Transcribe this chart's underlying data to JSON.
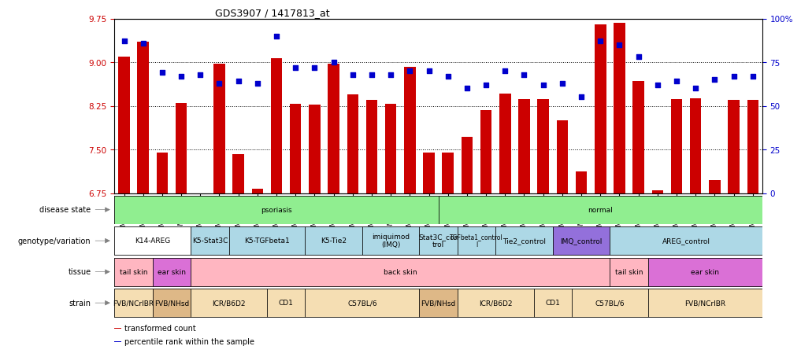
{
  "title": "GDS3907 / 1417813_at",
  "samples": [
    "GSM684694",
    "GSM684695",
    "GSM684696",
    "GSM684688",
    "GSM684689",
    "GSM684690",
    "GSM684700",
    "GSM684701",
    "GSM684704",
    "GSM684705",
    "GSM684706",
    "GSM684676",
    "GSM684677",
    "GSM684678",
    "GSM684682",
    "GSM684683",
    "GSM684684",
    "GSM684702",
    "GSM684703",
    "GSM684707",
    "GSM684708",
    "GSM684709",
    "GSM684679",
    "GSM684680",
    "GSM684681",
    "GSM684685",
    "GSM684686",
    "GSM684687",
    "GSM684697",
    "GSM684698",
    "GSM684699",
    "GSM684691",
    "GSM684692",
    "GSM684693"
  ],
  "bar_values": [
    9.1,
    9.35,
    7.45,
    8.3,
    6.72,
    8.97,
    7.42,
    6.83,
    9.07,
    8.28,
    8.27,
    8.97,
    8.45,
    8.35,
    8.28,
    8.92,
    7.45,
    7.45,
    7.72,
    8.18,
    8.46,
    8.36,
    8.37,
    8.0,
    7.12,
    9.65,
    9.67,
    8.68,
    6.8,
    8.37,
    8.38,
    6.98,
    8.35,
    8.35
  ],
  "percentile_values": [
    87,
    86,
    69,
    67,
    68,
    63,
    64,
    63,
    90,
    72,
    72,
    75,
    68,
    68,
    68,
    70,
    70,
    67,
    60,
    62,
    70,
    68,
    62,
    63,
    55,
    87,
    85,
    78,
    62,
    64,
    60,
    65,
    67,
    67
  ],
  "ylim_left": [
    6.75,
    9.75
  ],
  "ylim_right": [
    0,
    100
  ],
  "yticks_left": [
    6.75,
    7.5,
    8.25,
    9.0,
    9.75
  ],
  "yticks_right": [
    0,
    25,
    50,
    75,
    100
  ],
  "bar_color": "#cc0000",
  "scatter_color": "#0000cc",
  "disease_groups": [
    {
      "label": "psoriasis",
      "start": 0,
      "end": 16,
      "color": "#90ee90"
    },
    {
      "label": "normal",
      "start": 17,
      "end": 33,
      "color": "#90ee90"
    }
  ],
  "genotype_groups": [
    {
      "label": "K14-AREG",
      "start": 0,
      "end": 3,
      "color": "#ffffff"
    },
    {
      "label": "K5-Stat3C",
      "start": 4,
      "end": 5,
      "color": "#add8e6"
    },
    {
      "label": "K5-TGFbeta1",
      "start": 6,
      "end": 9,
      "color": "#add8e6"
    },
    {
      "label": "K5-Tie2",
      "start": 10,
      "end": 12,
      "color": "#add8e6"
    },
    {
      "label": "imiquimod\n(IMQ)",
      "start": 13,
      "end": 15,
      "color": "#add8e6"
    },
    {
      "label": "Stat3C_con\ntrol",
      "start": 16,
      "end": 17,
      "color": "#add8e6"
    },
    {
      "label": "TGFbeta1_control\nl",
      "start": 18,
      "end": 19,
      "color": "#add8e6"
    },
    {
      "label": "Tie2_control",
      "start": 20,
      "end": 22,
      "color": "#add8e6"
    },
    {
      "label": "IMQ_control",
      "start": 23,
      "end": 25,
      "color": "#9370db"
    },
    {
      "label": "AREG_control",
      "start": 26,
      "end": 33,
      "color": "#add8e6"
    }
  ],
  "tissue_groups": [
    {
      "label": "tail skin",
      "start": 0,
      "end": 1,
      "color": "#ffb6c1"
    },
    {
      "label": "ear skin",
      "start": 2,
      "end": 3,
      "color": "#da70d6"
    },
    {
      "label": "back skin",
      "start": 4,
      "end": 25,
      "color": "#ffb6c1"
    },
    {
      "label": "tail skin",
      "start": 26,
      "end": 27,
      "color": "#ffb6c1"
    },
    {
      "label": "ear skin",
      "start": 28,
      "end": 33,
      "color": "#da70d6"
    }
  ],
  "strain_groups": [
    {
      "label": "FVB/NCrIBR",
      "start": 0,
      "end": 1,
      "color": "#f5deb3"
    },
    {
      "label": "FVB/NHsd",
      "start": 2,
      "end": 3,
      "color": "#deb887"
    },
    {
      "label": "ICR/B6D2",
      "start": 4,
      "end": 7,
      "color": "#f5deb3"
    },
    {
      "label": "CD1",
      "start": 8,
      "end": 9,
      "color": "#f5deb3"
    },
    {
      "label": "C57BL/6",
      "start": 10,
      "end": 15,
      "color": "#f5deb3"
    },
    {
      "label": "FVB/NHsd",
      "start": 16,
      "end": 17,
      "color": "#deb887"
    },
    {
      "label": "ICR/B6D2",
      "start": 18,
      "end": 21,
      "color": "#f5deb3"
    },
    {
      "label": "CD1",
      "start": 22,
      "end": 23,
      "color": "#f5deb3"
    },
    {
      "label": "C57BL/6",
      "start": 24,
      "end": 27,
      "color": "#f5deb3"
    },
    {
      "label": "FVB/NCrIBR",
      "start": 28,
      "end": 33,
      "color": "#f5deb3"
    }
  ],
  "legend_items": [
    {
      "label": "transformed count",
      "color": "#cc0000"
    },
    {
      "label": "percentile rank within the sample",
      "color": "#0000cc"
    }
  ]
}
